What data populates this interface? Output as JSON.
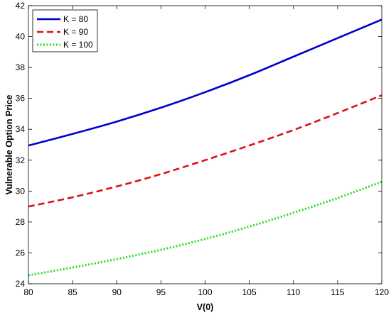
{
  "chart_data": {
    "type": "line",
    "title": "",
    "xlabel": "V(0)",
    "ylabel": "Vulnerable Option Price",
    "xlim": [
      80,
      120
    ],
    "ylim": [
      24,
      42
    ],
    "xticks": [
      80,
      85,
      90,
      95,
      100,
      105,
      110,
      115,
      120
    ],
    "yticks": [
      24,
      26,
      28,
      30,
      32,
      34,
      36,
      38,
      40,
      42
    ],
    "grid": false,
    "legend_position": "top-left",
    "x": [
      80,
      85,
      90,
      95,
      100,
      105,
      110,
      115,
      120
    ],
    "series": [
      {
        "name": "K = 80",
        "color": "#0000cc",
        "style": "solid",
        "values": [
          32.95,
          33.7,
          34.5,
          35.4,
          36.4,
          37.5,
          38.7,
          39.9,
          41.1
        ]
      },
      {
        "name": "K = 90",
        "color": "#dd1111",
        "style": "dashed",
        "values": [
          29.0,
          29.6,
          30.3,
          31.1,
          32.0,
          32.95,
          33.95,
          35.05,
          36.2
        ]
      },
      {
        "name": "K = 100",
        "color": "#22dd22",
        "style": "dotted",
        "values": [
          24.55,
          25.05,
          25.6,
          26.2,
          26.9,
          27.7,
          28.6,
          29.55,
          30.6
        ]
      }
    ]
  }
}
